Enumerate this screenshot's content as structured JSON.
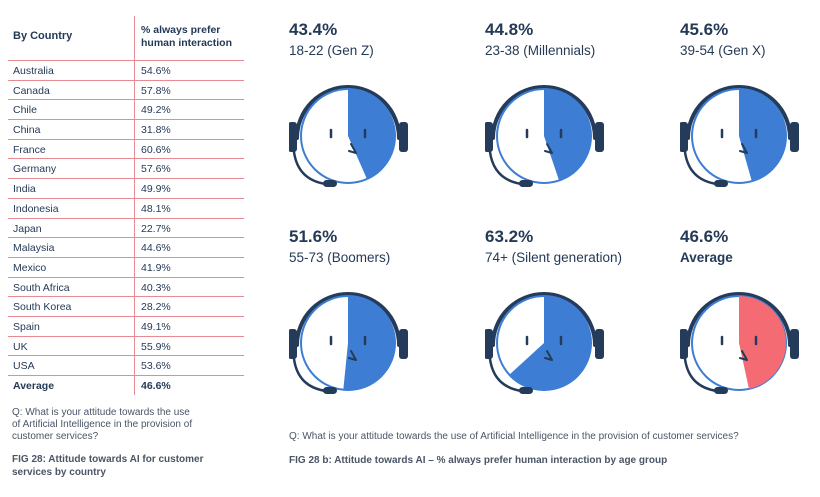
{
  "table": {
    "header_country": "By Country",
    "header_value": [
      "% always prefer",
      "human interaction"
    ],
    "rows": [
      {
        "country": "Australia",
        "value": "54.6%"
      },
      {
        "country": "Canada",
        "value": "57.8%"
      },
      {
        "country": "Chile",
        "value": "49.2%"
      },
      {
        "country": "China",
        "value": "31.8%"
      },
      {
        "country": "France",
        "value": "60.6%"
      },
      {
        "country": "Germany",
        "value": "57.6%"
      },
      {
        "country": "India",
        "value": "49.9%"
      },
      {
        "country": "Indonesia",
        "value": "48.1%"
      },
      {
        "country": "Japan",
        "value": "22.7%"
      },
      {
        "country": "Malaysia",
        "value": "44.6%"
      },
      {
        "country": "Mexico",
        "value": "41.9%"
      },
      {
        "country": "South Africa",
        "value": "40.3%"
      },
      {
        "country": "South Korea",
        "value": "28.2%"
      },
      {
        "country": "Spain",
        "value": "49.1%"
      },
      {
        "country": "UK",
        "value": "55.9%"
      },
      {
        "country": "USA",
        "value": "53.6%"
      },
      {
        "country": "Average",
        "value": "46.6%"
      }
    ]
  },
  "left_question": [
    "Q: What is your attitude towards the use",
    "of Artificial Intelligence in the provision of",
    "customer services?"
  ],
  "left_caption": [
    "FIG 28: Attitude towards AI for customer",
    "services by country"
  ],
  "right_question": "Q: What is your attitude towards the use of Artificial Intelligence in the provision of customer services?",
  "right_caption": "FIG 28 b: Attitude towards AI – % always prefer human interaction by age group",
  "colors": {
    "blue": "#3d7ed4",
    "average": "#f46b73",
    "navy": "#243b5a",
    "face": "#ffffff"
  },
  "chart_data": {
    "type": "pie",
    "groups": [
      {
        "label": "18-22 (Gen Z)",
        "pct_text": "43.4%",
        "value": 43.4
      },
      {
        "label": "23-38 (Millennials)",
        "pct_text": "44.8%",
        "value": 44.8
      },
      {
        "label": "39-54 (Gen X)",
        "pct_text": "45.6%",
        "value": 45.6
      },
      {
        "label": "55-73 (Boomers)",
        "pct_text": "51.6%",
        "value": 51.6
      },
      {
        "label": "74+ (Silent generation)",
        "pct_text": "63.2%",
        "value": 63.2
      },
      {
        "label": "Average",
        "pct_text": "46.6%",
        "value": 46.6,
        "highlight": true
      }
    ]
  }
}
